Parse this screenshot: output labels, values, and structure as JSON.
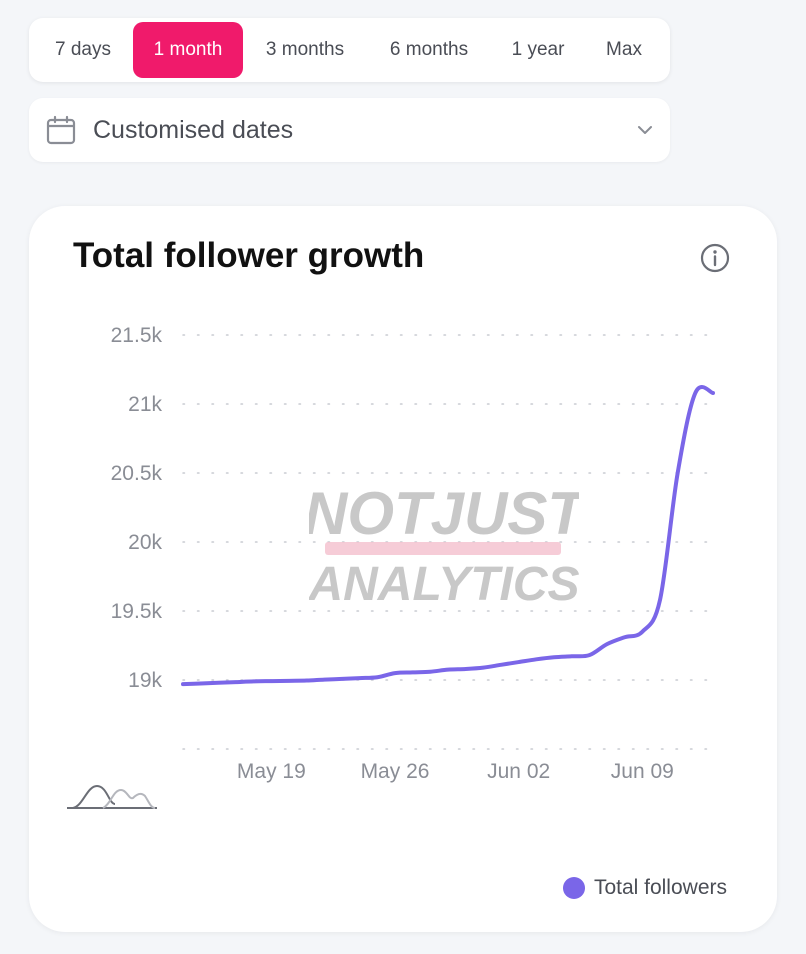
{
  "range_options": [
    "7 days",
    "1 month",
    "3 months",
    "6 months",
    "1 year",
    "Max"
  ],
  "active_range": "1 month",
  "date_select": {
    "label": "Customised dates"
  },
  "card": {
    "title": "Total follower growth",
    "legend_label": "Total followers"
  },
  "watermark": {
    "line1": "NOTJUST",
    "line2": "ANALYTICS"
  },
  "colors": {
    "accent": "#f01a6b",
    "series": "#7a66e8"
  },
  "chart_data": {
    "type": "line",
    "title": "Total follower growth",
    "y_ticks": [
      "21.5k",
      "21k",
      "20.5k",
      "20k",
      "19.5k",
      "19k"
    ],
    "y_tick_values": [
      21500,
      21000,
      20500,
      20000,
      19500,
      19000
    ],
    "ylim": [
      18500,
      21500
    ],
    "x_ticks": [
      "May 19",
      "May 26",
      "Jun 02",
      "Jun 09"
    ],
    "x_tick_values": [
      "2024-05-19",
      "2024-05-26",
      "2024-06-02",
      "2024-06-09"
    ],
    "xlim": [
      "2024-05-14",
      "2024-06-13"
    ],
    "grid": "horizontal dotted",
    "legend": "bottom-right",
    "series": [
      {
        "name": "Total followers",
        "color": "#7a66e8",
        "x": [
          "2024-05-14",
          "2024-05-15",
          "2024-05-16",
          "2024-05-17",
          "2024-05-18",
          "2024-05-19",
          "2024-05-20",
          "2024-05-21",
          "2024-05-22",
          "2024-05-23",
          "2024-05-24",
          "2024-05-25",
          "2024-05-26",
          "2024-05-27",
          "2024-05-28",
          "2024-05-29",
          "2024-05-30",
          "2024-05-31",
          "2024-06-01",
          "2024-06-02",
          "2024-06-03",
          "2024-06-04",
          "2024-06-05",
          "2024-06-06",
          "2024-06-07",
          "2024-06-08",
          "2024-06-09",
          "2024-06-10",
          "2024-06-11",
          "2024-06-12",
          "2024-06-13"
        ],
        "y": [
          18970,
          18975,
          18980,
          18985,
          18990,
          18992,
          18994,
          18996,
          19003,
          19008,
          19014,
          19020,
          19050,
          19055,
          19060,
          19075,
          19080,
          19090,
          19110,
          19130,
          19150,
          19165,
          19172,
          19180,
          19260,
          19310,
          19350,
          19580,
          20500,
          21080,
          21080
        ]
      }
    ]
  }
}
